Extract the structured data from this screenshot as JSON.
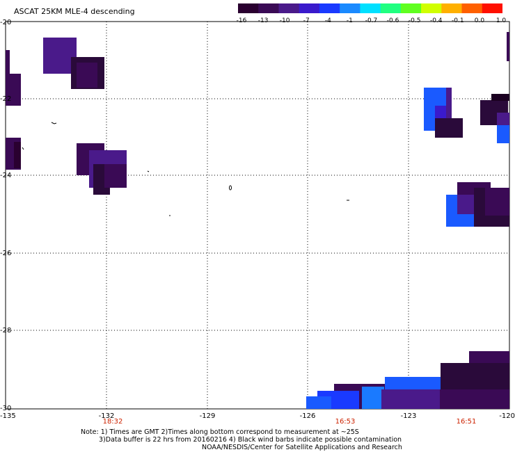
{
  "title": "ASCAT 25KM MLE-4 descending",
  "colorbar": {
    "labels": [
      "-16",
      "-13",
      "-10",
      "-7",
      "-4",
      "-1",
      "-0.7",
      "-0.6",
      "-0.5",
      "-0.4",
      "-0.1",
      "0.0",
      "1.0"
    ],
    "colors": [
      "#2a0030",
      "#3a0a55",
      "#4a1a8a",
      "#3a1acc",
      "#1a3aff",
      "#1a8aff",
      "#00e0ff",
      "#20ff80",
      "#60ff20",
      "#d0ff00",
      "#ffb000",
      "#ff6000",
      "#ff1000"
    ]
  },
  "axes": {
    "x_ticks": [
      "-135",
      "-132",
      "-129",
      "-126",
      "-123",
      "-120"
    ],
    "y_ticks": [
      "-20",
      "-22",
      "-24",
      "-26",
      "-28",
      "-30"
    ],
    "grid": "dotted"
  },
  "times": [
    "18:32",
    "16:53",
    "16:51"
  ],
  "time_color": "#cc2200",
  "notes": {
    "line1": "Note: 1) Times are GMT 2)Times along bottom correspond to measurement at ~25S",
    "line2": "3)Data buffer is 22 hrs from 20160216 4) Black wind barbs indicate possible contamination",
    "line3": "NOAA/NESDIS/Center for Satellite Applications and Research"
  }
}
